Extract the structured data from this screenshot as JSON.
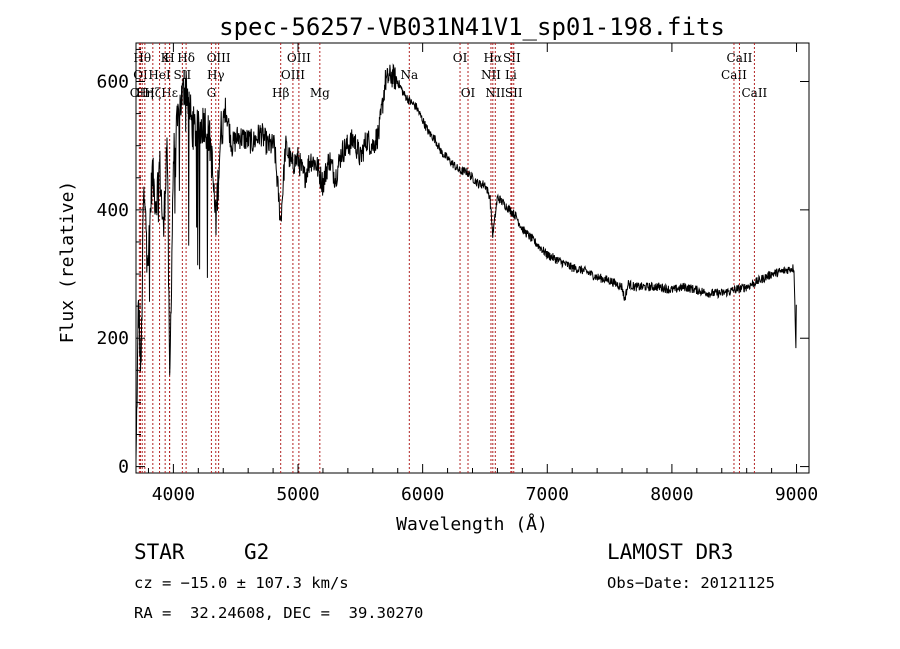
{
  "chart_data": {
    "type": "line",
    "title": "spec-56257-VB031N41V1_sp01-198.fits",
    "xlabel": "Wavelength (Å)",
    "ylabel": "Flux (relative)",
    "xlim": [
      3700,
      9100
    ],
    "ylim": [
      -10,
      660
    ],
    "xticks": [
      4000,
      5000,
      6000,
      7000,
      8000,
      9000
    ],
    "yticks": [
      0,
      200,
      400,
      600
    ],
    "series": [
      {
        "name": "flux",
        "x": [
          3700,
          3720,
          3740,
          3760,
          3780,
          3800,
          3830,
          3860,
          3890,
          3920,
          3950,
          3970,
          4000,
          4050,
          4100,
          4150,
          4200,
          4250,
          4300,
          4340,
          4380,
          4420,
          4470,
          4520,
          4580,
          4640,
          4700,
          4760,
          4810,
          4861,
          4900,
          4950,
          5000,
          5050,
          5100,
          5150,
          5200,
          5250,
          5300,
          5350,
          5400,
          5450,
          5500,
          5550,
          5600,
          5650,
          5700,
          5750,
          5800,
          5850,
          5893,
          5950,
          6000,
          6050,
          6100,
          6150,
          6200,
          6250,
          6300,
          6350,
          6400,
          6450,
          6500,
          6540,
          6563,
          6600,
          6650,
          6700,
          6750,
          6800,
          6850,
          6900,
          6950,
          7000,
          7100,
          7200,
          7300,
          7400,
          7500,
          7600,
          7620,
          7650,
          7700,
          7800,
          7900,
          8000,
          8100,
          8200,
          8300,
          8400,
          8500,
          8600,
          8700,
          8800,
          8900,
          8980,
          8995,
          9000
        ],
        "y": [
          0,
          260,
          140,
          420,
          380,
          330,
          460,
          410,
          470,
          360,
          520,
          120,
          480,
          560,
          600,
          530,
          520,
          540,
          500,
          380,
          520,
          560,
          500,
          515,
          510,
          505,
          520,
          500,
          500,
          380,
          500,
          470,
          480,
          450,
          480,
          470,
          440,
          480,
          450,
          490,
          500,
          510,
          480,
          510,
          500,
          520,
          600,
          610,
          600,
          580,
          570,
          560,
          540,
          520,
          510,
          490,
          480,
          470,
          460,
          460,
          450,
          440,
          440,
          420,
          360,
          420,
          410,
          400,
          390,
          370,
          360,
          350,
          340,
          330,
          320,
          310,
          305,
          295,
          290,
          280,
          260,
          285,
          280,
          280,
          280,
          275,
          280,
          275,
          270,
          270,
          275,
          280,
          290,
          300,
          305,
          310,
          180,
          300
        ]
      }
    ],
    "lines": [
      {
        "name": "OII",
        "x": 3727,
        "row": 3
      },
      {
        "name": "OI",
        "x": 3736,
        "row": 2
      },
      {
        "name": "Hθ",
        "x": 3750,
        "row": 1
      },
      {
        "name": "Hη",
        "x": 3771,
        "row": 3
      },
      {
        "name": "Hζ",
        "x": 3835,
        "row": 3
      },
      {
        "name": "HeI",
        "x": 3889,
        "row": 2
      },
      {
        "name": "Hε",
        "x": 3970,
        "row": 3
      },
      {
        "name": "K",
        "x": 3934,
        "row": 1
      },
      {
        "name": "H",
        "x": 3969,
        "row": 1
      },
      {
        "name": "SII",
        "x": 4072,
        "row": 2
      },
      {
        "name": "Hδ",
        "x": 4102,
        "row": 1
      },
      {
        "name": "G",
        "x": 4305,
        "row": 3
      },
      {
        "name": "Hγ",
        "x": 4340,
        "row": 2
      },
      {
        "name": "OIII",
        "x": 4363,
        "row": 1
      },
      {
        "name": "Hβ",
        "x": 4861,
        "row": 3
      },
      {
        "name": "OIII",
        "x": 4959,
        "row": 2
      },
      {
        "name": "OIII",
        "x": 5007,
        "row": 1
      },
      {
        "name": "Mg",
        "x": 5175,
        "row": 3
      },
      {
        "name": "Na",
        "x": 5893,
        "row": 2
      },
      {
        "name": "OI",
        "x": 6300,
        "row": 1
      },
      {
        "name": "OI",
        "x": 6364,
        "row": 3
      },
      {
        "name": "NII",
        "x": 6548,
        "row": 2
      },
      {
        "name": "Hα",
        "x": 6563,
        "row": 1
      },
      {
        "name": "NII",
        "x": 6583,
        "row": 3
      },
      {
        "name": "Li",
        "x": 6708,
        "row": 2
      },
      {
        "name": "SII",
        "x": 6716,
        "row": 1
      },
      {
        "name": "SII",
        "x": 6731,
        "row": 3
      },
      {
        "name": "CaII",
        "x": 8498,
        "row": 2
      },
      {
        "name": "CaII",
        "x": 8542,
        "row": 1
      },
      {
        "name": "CaII",
        "x": 8662,
        "row": 3
      }
    ]
  },
  "info": {
    "class": "STAR",
    "subclass": "G2",
    "survey": "LAMOST DR3",
    "cz": "cz = −15.0 ± 107.3 km/s",
    "obs_date": "Obs−Date: 20121125",
    "radec": "RA =  32.24608, DEC =  39.30270"
  },
  "colors": {
    "line_marker": "#b22222",
    "spectrum": "#000000",
    "axes": "#000000"
  }
}
